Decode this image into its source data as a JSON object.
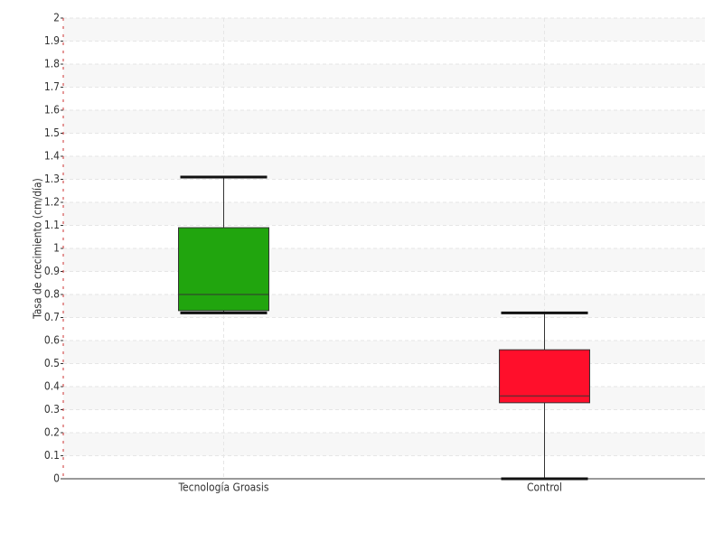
{
  "chart_data": {
    "type": "box",
    "y_label": "Tasa de crecimiento (cm/día)",
    "categories": [
      "Tecnología Groasis",
      "Control"
    ],
    "boxes": [
      {
        "color": "#21a50e",
        "min": 0.72,
        "q1": 0.73,
        "median": 0.8,
        "q3": 1.09,
        "max": 1.31
      },
      {
        "color": "#ff0f2b",
        "min": 0,
        "q1": 0.33,
        "median": 0.36,
        "q3": 0.56,
        "max": 0.72
      }
    ],
    "ylim": [
      0,
      2
    ],
    "yticks": [
      0,
      0.1,
      0.2,
      0.3,
      0.4,
      0.5,
      0.6,
      0.7,
      0.8,
      0.9,
      1,
      1.1,
      1.2,
      1.3,
      1.4,
      1.5,
      1.6,
      1.7,
      1.8,
      1.9,
      2
    ],
    "grid": true
  }
}
